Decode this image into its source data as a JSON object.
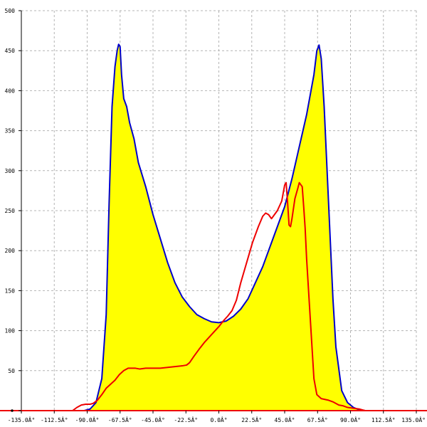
{
  "chart_data": {
    "type": "area",
    "title": "",
    "xlabel": "",
    "ylabel": "",
    "xlim": [
      -135,
      135
    ],
    "ylim": [
      0,
      500
    ],
    "grid": true,
    "x_ticks": [
      -135,
      -112.5,
      -90,
      -67.5,
      -45,
      -22.5,
      0,
      22.5,
      45,
      67.5,
      90,
      112.5,
      135
    ],
    "x_tick_labels": [
      "-135.0Â°",
      "-112.5Â°",
      "-90.0Â°",
      "-67.5Â°",
      "-45.0Â°",
      "-22.5Â°",
      "0.0Â°",
      "22.5Â°",
      "45.0Â°",
      "67.5Â°",
      "90.0Â°",
      "112.5Â°",
      "135.0Â°"
    ],
    "y_ticks": [
      0,
      50,
      100,
      150,
      200,
      250,
      300,
      350,
      400,
      450,
      500
    ],
    "y_tick_labels": [
      "0",
      "50",
      "100",
      "150",
      "200",
      "250",
      "300",
      "350",
      "400",
      "450",
      "500"
    ],
    "colors": {
      "fill": "#ffff00",
      "series_a": "#0000cc",
      "series_b": "#ee0000",
      "grid": "#b4b4b4",
      "axis": "#000000"
    },
    "series": [
      {
        "role": "envelope",
        "x": [
          -135,
          -100,
          -92,
          -88,
          -84,
          -80,
          -77,
          -75,
          -73,
          -71,
          -69.5,
          -68.5,
          -67.5,
          -66.5,
          -65,
          -63,
          -61,
          -58,
          -55,
          -50,
          -45,
          -40,
          -35,
          -30,
          -25,
          -20,
          -15,
          -10,
          -5,
          0,
          5,
          10,
          15,
          20,
          25,
          30,
          35,
          40,
          45,
          50,
          55,
          60,
          65,
          67,
          68.5,
          70,
          72,
          75,
          78,
          80,
          84,
          88,
          92,
          96,
          100,
          135
        ],
        "y": [
          0,
          0,
          0,
          2,
          10,
          40,
          120,
          260,
          380,
          430,
          450,
          458,
          455,
          420,
          390,
          380,
          360,
          340,
          310,
          280,
          245,
          215,
          185,
          160,
          142,
          130,
          120,
          115,
          111,
          110,
          112,
          118,
          127,
          140,
          160,
          180,
          205,
          230,
          255,
          290,
          330,
          370,
          420,
          450,
          457,
          440,
          380,
          260,
          140,
          80,
          25,
          10,
          4,
          1,
          0,
          0
        ]
      },
      {
        "role": "line",
        "x": [
          -135,
          -100,
          -97,
          -94,
          -91,
          -88,
          -86,
          -83,
          -80,
          -77,
          -74,
          -71,
          -68,
          -65,
          -62,
          -60,
          -57,
          -54,
          -50,
          -45,
          -40,
          -35,
          -30,
          -25,
          -22,
          -20,
          -17,
          -13,
          -10,
          -6,
          -3,
          0,
          3,
          6,
          9,
          12,
          15,
          19,
          23,
          27,
          30,
          32,
          34,
          36,
          38,
          40,
          43,
          45,
          46,
          47,
          48,
          49,
          50,
          52,
          54,
          55,
          57,
          58,
          59,
          60,
          61,
          63,
          65,
          67,
          70,
          75,
          78,
          80,
          82,
          85,
          88,
          92,
          96,
          100,
          103,
          135
        ],
        "y": [
          0,
          0,
          4,
          7,
          8,
          8,
          9,
          13,
          20,
          28,
          33,
          38,
          45,
          50,
          53,
          53,
          53,
          52,
          53,
          53,
          53,
          54,
          55,
          56,
          57,
          60,
          68,
          78,
          85,
          93,
          99,
          105,
          112,
          118,
          125,
          138,
          160,
          185,
          210,
          230,
          243,
          247,
          245,
          240,
          245,
          250,
          262,
          282,
          285,
          260,
          232,
          230,
          240,
          265,
          278,
          285,
          280,
          255,
          228,
          190,
          160,
          100,
          40,
          20,
          15,
          13,
          11,
          9,
          7,
          6,
          4,
          3,
          2,
          0,
          0,
          0
        ]
      }
    ]
  }
}
